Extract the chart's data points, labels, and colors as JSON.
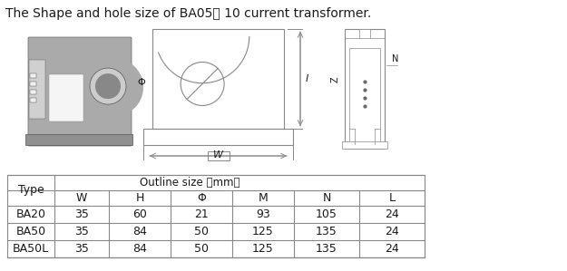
{
  "title": "The Shape and hole size of BA05、 10 current transformer.",
  "table_header_top": "Outline size （mm）",
  "table_columns": [
    "Type",
    "W",
    "H",
    "Φ",
    "M",
    "N",
    "L"
  ],
  "table_data": [
    [
      "BA20",
      "35",
      "60",
      "21",
      "93",
      "105",
      "24"
    ],
    [
      "BA50",
      "35",
      "84",
      "50",
      "125",
      "135",
      "24"
    ],
    [
      "BA50L",
      "35",
      "84",
      "50",
      "125",
      "135",
      "24"
    ]
  ],
  "bg_color": "#ffffff",
  "text_color": "#1a1a1a",
  "line_color": "#888888",
  "border_color": "#888888",
  "title_fontsize": 10,
  "table_fontsize": 9
}
